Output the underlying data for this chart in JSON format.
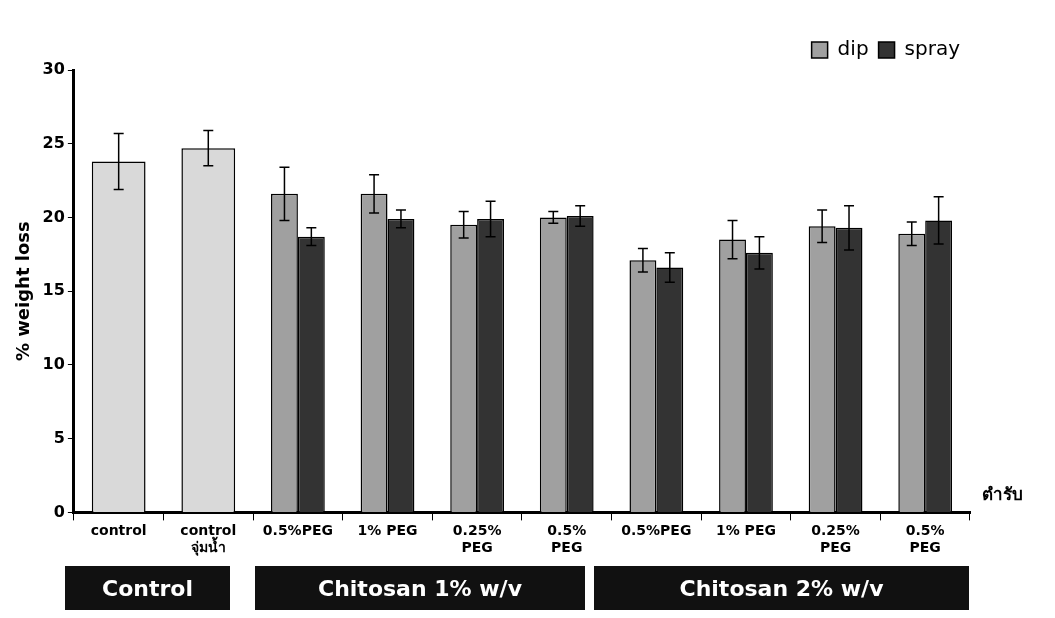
{
  "chart_data": {
    "type": "bar",
    "categories": [
      "control",
      "control\nจุ่มน้ำ",
      "0.5%PEG",
      "1% PEG",
      "0.25%\nPEG",
      "0.5%\nPEG",
      "0.5%PEG",
      "1% PEG",
      "0.25%\nPEG",
      "0.5%\nPEG"
    ],
    "series": [
      {
        "color": "#d9d9d9",
        "values": [
          23.8,
          24.7,
          null,
          null,
          null,
          null,
          null,
          null,
          null,
          null
        ],
        "errors": [
          1.9,
          1.2,
          null,
          null,
          null,
          null,
          null,
          null,
          null,
          null
        ]
      },
      {
        "name": "dip",
        "color": "#a0a0a0",
        "values": [
          null,
          null,
          21.6,
          21.6,
          19.5,
          20.0,
          17.1,
          18.5,
          19.4,
          18.9
        ],
        "errors": [
          null,
          null,
          1.8,
          1.3,
          0.9,
          0.4,
          0.8,
          1.3,
          1.1,
          0.8
        ]
      },
      {
        "name": "spray",
        "color": "#333333",
        "values": [
          null,
          null,
          18.7,
          19.9,
          19.9,
          20.1,
          16.6,
          17.6,
          19.3,
          19.8
        ],
        "errors": [
          null,
          null,
          0.6,
          0.6,
          1.2,
          0.7,
          1.0,
          1.1,
          1.5,
          1.6
        ]
      }
    ],
    "ylabel": "% weight loss",
    "xlabel": "ตำรับ",
    "ylim": [
      0,
      30
    ],
    "yticks": [
      0,
      5,
      10,
      15,
      20,
      25,
      30
    ],
    "grid": false,
    "legend": "top right",
    "annotations": [
      "Control",
      "Chitosan 1% w/v",
      "Chitosan 2% w/v"
    ]
  }
}
